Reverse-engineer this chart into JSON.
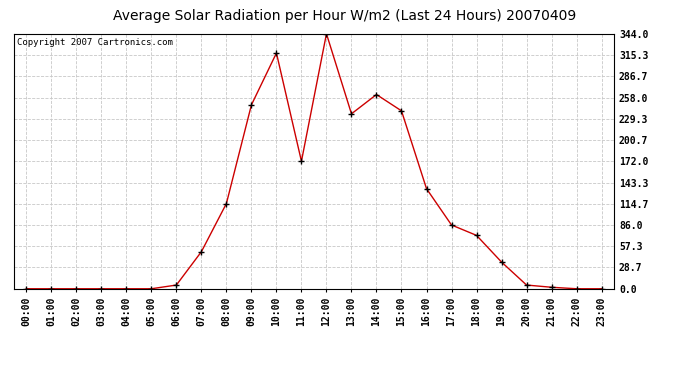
{
  "title": "Average Solar Radiation per Hour W/m2 (Last 24 Hours) 20070409",
  "copyright_text": "Copyright 2007 Cartronics.com",
  "hours": [
    "00:00",
    "01:00",
    "02:00",
    "03:00",
    "04:00",
    "05:00",
    "06:00",
    "07:00",
    "08:00",
    "09:00",
    "10:00",
    "11:00",
    "12:00",
    "13:00",
    "14:00",
    "15:00",
    "16:00",
    "17:00",
    "18:00",
    "19:00",
    "20:00",
    "21:00",
    "22:00",
    "23:00"
  ],
  "values": [
    0,
    0,
    0,
    0,
    0,
    0,
    5,
    50,
    115,
    248,
    318,
    172,
    344,
    236,
    262,
    240,
    135,
    86,
    72,
    36,
    5,
    2,
    0,
    0
  ],
  "yticks": [
    0.0,
    28.7,
    57.3,
    86.0,
    114.7,
    143.3,
    172.0,
    200.7,
    229.3,
    258.0,
    286.7,
    315.3,
    344.0
  ],
  "ytick_labels": [
    "0.0",
    "28.7",
    "57.3",
    "86.0",
    "114.7",
    "143.3",
    "172.0",
    "200.7",
    "229.3",
    "258.0",
    "286.7",
    "315.3",
    "344.0"
  ],
  "line_color": "#cc0000",
  "marker": "+",
  "marker_color": "#000000",
  "bg_color": "#ffffff",
  "plot_bg_color": "#ffffff",
  "grid_color": "#c8c8c8",
  "grid_style": "--",
  "title_fontsize": 10,
  "tick_fontsize": 7,
  "copyright_fontsize": 6.5,
  "ymin": 0.0,
  "ymax": 344.0
}
